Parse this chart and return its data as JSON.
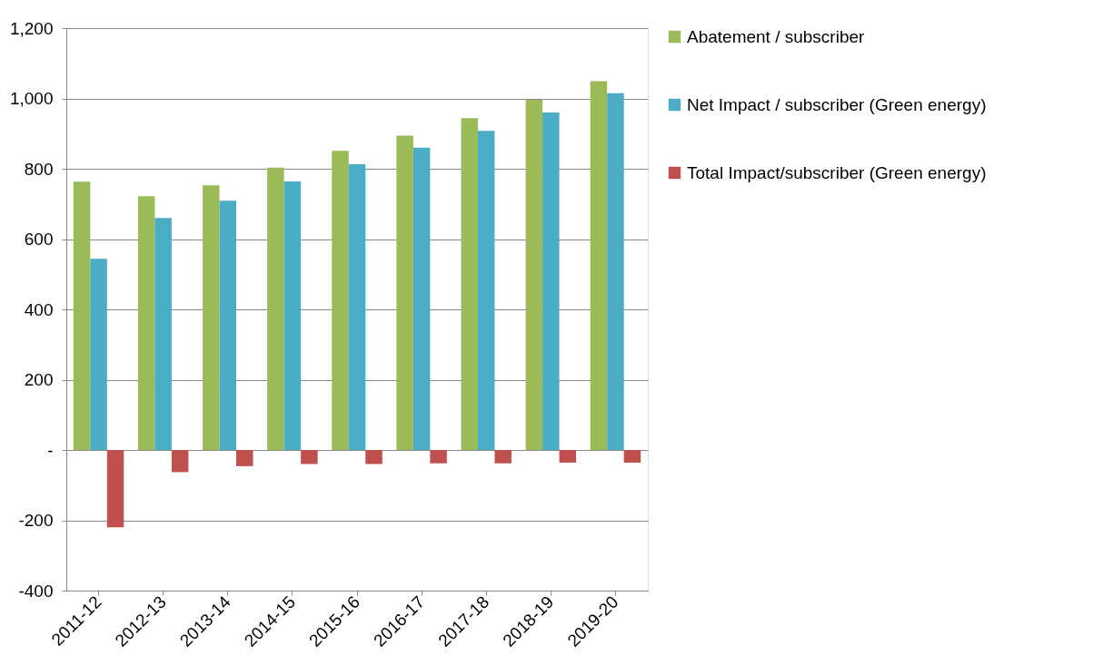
{
  "chart_data": {
    "type": "bar",
    "categories": [
      "2011-12",
      "2012-13",
      "2013-14",
      "2014-15",
      "2015-16",
      "2016-17",
      "2017-18",
      "2018-19",
      "2019-20"
    ],
    "series": [
      {
        "name": "Abatement / subscriber",
        "color": "#9bbb59",
        "values": [
          763,
          722,
          753,
          803,
          851,
          894,
          944,
          996,
          1049
        ]
      },
      {
        "name": "Net Impact / subscriber (Green energy)",
        "color": "#4bacc6",
        "values": [
          544,
          660,
          709,
          764,
          813,
          860,
          908,
          960,
          1015
        ]
      },
      {
        "name": "Total Impact/subscriber (Green energy)",
        "color": "#c0504d",
        "values": [
          -220,
          -63,
          -46,
          -40,
          -40,
          -38,
          -38,
          -36,
          -36
        ]
      }
    ],
    "ylim": [
      -400,
      1200
    ],
    "yticks": [
      {
        "value": -400,
        "label": "-400"
      },
      {
        "value": -200,
        "label": "-200"
      },
      {
        "value": 0,
        "label": "-"
      },
      {
        "value": 200,
        "label": "200"
      },
      {
        "value": 400,
        "label": "400"
      },
      {
        "value": 600,
        "label": "600"
      },
      {
        "value": 800,
        "label": "800"
      },
      {
        "value": 1000,
        "label": "1,000"
      },
      {
        "value": 1200,
        "label": "1,200"
      }
    ],
    "grid": "y",
    "legend": "right"
  }
}
